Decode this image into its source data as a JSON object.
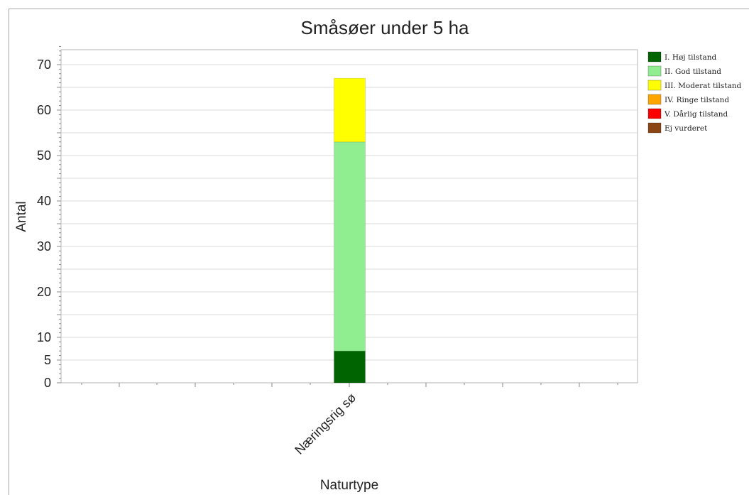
{
  "chart_data": {
    "type": "bar",
    "stacked": true,
    "title": "Småsøer under 5 ha",
    "xlabel": "Naturtype",
    "ylabel": "Antal",
    "categories": [
      "Næringsrig sø"
    ],
    "ylim": [
      0,
      74
    ],
    "yticks": [
      0,
      5,
      10,
      20,
      30,
      40,
      50,
      60,
      70
    ],
    "grid": true,
    "legend_position": "right",
    "series": [
      {
        "name": "I. Høj tilstand",
        "color": "#006400",
        "values": [
          7
        ]
      },
      {
        "name": "II. God tilstand",
        "color": "#90EE90",
        "values": [
          46
        ]
      },
      {
        "name": "III. Moderat tilstand",
        "color": "#FFFF00",
        "values": [
          14
        ]
      },
      {
        "name": "IV. Ringe tilstand",
        "color": "#FFA500",
        "values": [
          0
        ]
      },
      {
        "name": "V. Dårlig tilstand",
        "color": "#FF0000",
        "values": [
          0
        ]
      },
      {
        "name": "Ej vurderet",
        "color": "#8B4513",
        "values": [
          0
        ]
      }
    ]
  }
}
